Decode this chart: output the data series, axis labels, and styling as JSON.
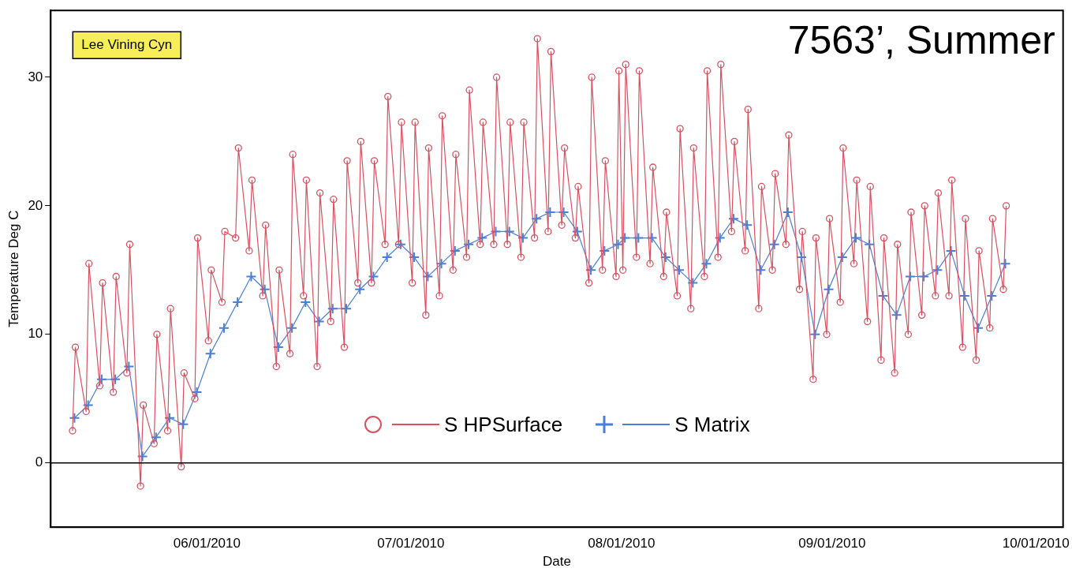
{
  "chart_data": {
    "type": "line",
    "title": "7563’, Summer",
    "xlabel": "Date",
    "ylabel": "Temperature Deg C",
    "annotations": [
      "Lee Vining Cyn"
    ],
    "xlim": [
      "2010-05-09",
      "2010-10-05"
    ],
    "xticks": [
      {
        "value": "2010-06-01",
        "label": "06/01/2010"
      },
      {
        "value": "2010-07-01",
        "label": "07/01/2010"
      },
      {
        "value": "2010-08-01",
        "label": "08/01/2010"
      },
      {
        "value": "2010-09-01",
        "label": "09/01/2010"
      },
      {
        "value": "2010-10-01",
        "label": "10/01/2010"
      }
    ],
    "ylim": [
      -5,
      35.2
    ],
    "yticks": [
      0,
      10,
      20,
      30
    ],
    "ref_lines": [
      {
        "axis": "y",
        "value": 0,
        "color": "#000000"
      }
    ],
    "legend": "bottom",
    "line_style": "solid",
    "series": [
      {
        "name": "S HPSurface",
        "color": "#d9515f",
        "marker": "circle",
        "x": [
          "2010-05-12T05:00",
          "2010-05-12T15:00",
          "2010-05-14T05:00",
          "2010-05-14T15:00",
          "2010-05-16T05:00",
          "2010-05-16T15:00",
          "2010-05-18T05:00",
          "2010-05-18T15:00",
          "2010-05-20T05:00",
          "2010-05-20T15:00",
          "2010-05-22T05:00",
          "2010-05-22T15:00",
          "2010-05-24T05:00",
          "2010-05-24T15:00",
          "2010-05-26T05:00",
          "2010-05-26T15:00",
          "2010-05-28T05:00",
          "2010-05-28T15:00",
          "2010-05-30T05:00",
          "2010-05-30T15:00",
          "2010-06-01T05:00",
          "2010-06-01T15:00",
          "2010-06-03T05:00",
          "2010-06-03T15:00",
          "2010-06-05T05:00",
          "2010-06-05T15:00",
          "2010-06-07T05:00",
          "2010-06-07T15:00",
          "2010-06-09T05:00",
          "2010-06-09T15:00",
          "2010-06-11T05:00",
          "2010-06-11T15:00",
          "2010-06-13T05:00",
          "2010-06-13T15:00",
          "2010-06-15T05:00",
          "2010-06-15T15:00",
          "2010-06-17T05:00",
          "2010-06-17T15:00",
          "2010-06-19T05:00",
          "2010-06-19T15:00",
          "2010-06-21T05:00",
          "2010-06-21T15:00",
          "2010-06-23T05:00",
          "2010-06-23T15:00",
          "2010-06-25T05:00",
          "2010-06-25T15:00",
          "2010-06-27T05:00",
          "2010-06-27T15:00",
          "2010-06-29T05:00",
          "2010-06-29T15:00",
          "2010-07-01T05:00",
          "2010-07-01T15:00",
          "2010-07-03T05:00",
          "2010-07-03T15:00",
          "2010-07-05T05:00",
          "2010-07-05T15:00",
          "2010-07-07T05:00",
          "2010-07-07T15:00",
          "2010-07-09T05:00",
          "2010-07-09T15:00",
          "2010-07-11T05:00",
          "2010-07-11T15:00",
          "2010-07-13T05:00",
          "2010-07-13T15:00",
          "2010-07-15T05:00",
          "2010-07-15T15:00",
          "2010-07-17T05:00",
          "2010-07-17T15:00",
          "2010-07-19T05:00",
          "2010-07-19T15:00",
          "2010-07-21T05:00",
          "2010-07-21T15:00",
          "2010-07-23T05:00",
          "2010-07-23T15:00",
          "2010-07-25T05:00",
          "2010-07-25T15:00",
          "2010-07-27T05:00",
          "2010-07-27T15:00",
          "2010-07-29T05:00",
          "2010-07-29T15:00",
          "2010-07-31T05:00",
          "2010-07-31T15:00",
          "2010-08-01T05:00",
          "2010-08-01T15:00",
          "2010-08-03T05:00",
          "2010-08-03T15:00",
          "2010-08-05T05:00",
          "2010-08-05T15:00",
          "2010-08-07T05:00",
          "2010-08-07T15:00",
          "2010-08-09T05:00",
          "2010-08-09T15:00",
          "2010-08-11T05:00",
          "2010-08-11T15:00",
          "2010-08-13T05:00",
          "2010-08-13T15:00",
          "2010-08-15T05:00",
          "2010-08-15T15:00",
          "2010-08-17T05:00",
          "2010-08-17T15:00",
          "2010-08-19T05:00",
          "2010-08-19T15:00",
          "2010-08-21T05:00",
          "2010-08-21T15:00",
          "2010-08-23T05:00",
          "2010-08-23T15:00",
          "2010-08-25T05:00",
          "2010-08-25T15:00",
          "2010-08-27T05:00",
          "2010-08-27T15:00",
          "2010-08-29T05:00",
          "2010-08-29T15:00",
          "2010-08-31T05:00",
          "2010-08-31T15:00",
          "2010-09-02T05:00",
          "2010-09-02T15:00",
          "2010-09-04T05:00",
          "2010-09-04T15:00",
          "2010-09-06T05:00",
          "2010-09-06T15:00",
          "2010-09-08T05:00",
          "2010-09-08T15:00",
          "2010-09-10T05:00",
          "2010-09-10T15:00",
          "2010-09-12T05:00",
          "2010-09-12T15:00",
          "2010-09-14T05:00",
          "2010-09-14T15:00",
          "2010-09-16T05:00",
          "2010-09-16T15:00",
          "2010-09-18T05:00",
          "2010-09-18T15:00",
          "2010-09-20T05:00",
          "2010-09-20T15:00",
          "2010-09-22T05:00",
          "2010-09-22T15:00",
          "2010-09-24T05:00",
          "2010-09-24T15:00",
          "2010-09-26T05:00",
          "2010-09-26T15:00"
        ],
        "values": [
          2.5,
          9,
          4,
          15.5,
          6,
          14,
          5.5,
          14.5,
          7,
          17,
          -1.8,
          4.5,
          1.5,
          10,
          2.5,
          12,
          -0.3,
          7,
          5,
          17.5,
          9.5,
          15,
          12.5,
          18,
          17.5,
          24.5,
          16.5,
          22,
          13,
          18.5,
          7.5,
          15,
          8.5,
          24,
          13,
          22,
          7.5,
          21,
          11,
          20.5,
          9,
          23.5,
          14,
          25,
          14,
          23.5,
          17,
          28.5,
          17,
          26.5,
          14,
          26.5,
          11.5,
          24.5,
          13,
          27,
          15,
          24,
          16,
          29,
          17,
          26.5,
          17,
          30,
          17,
          26.5,
          16,
          26.5,
          17.5,
          33,
          18,
          32,
          18.5,
          24.5,
          17.5,
          21.5,
          14,
          30,
          15,
          23.5,
          14.5,
          30.5,
          15,
          31,
          16,
          30.5,
          15.5,
          23,
          14.5,
          19.5,
          13,
          26,
          12,
          24.5,
          14.5,
          30.5,
          16,
          31,
          18,
          25,
          16.5,
          27.5,
          12,
          21.5,
          15,
          22.5,
          17,
          25.5,
          13.5,
          18,
          6.5,
          17.5,
          10,
          19,
          12.5,
          24.5,
          15.5,
          22,
          11,
          21.5,
          8,
          17.5,
          7,
          17,
          10,
          19.5,
          11.5,
          20,
          13,
          21,
          13,
          22,
          9,
          19,
          8,
          16.5,
          10.5,
          19,
          13.5,
          20
        ]
      },
      {
        "name": "S Matrix",
        "color": "#4a7fd9",
        "marker": "cross",
        "x": [
          "2010-05-12T12:00",
          "2010-05-14T12:00",
          "2010-05-16T12:00",
          "2010-05-18T12:00",
          "2010-05-20T12:00",
          "2010-05-22T12:00",
          "2010-05-24T12:00",
          "2010-05-26T12:00",
          "2010-05-28T12:00",
          "2010-05-30T12:00",
          "2010-06-01T12:00",
          "2010-06-03T12:00",
          "2010-06-05T12:00",
          "2010-06-07T12:00",
          "2010-06-09T12:00",
          "2010-06-11T12:00",
          "2010-06-13T12:00",
          "2010-06-15T12:00",
          "2010-06-17T12:00",
          "2010-06-19T12:00",
          "2010-06-21T12:00",
          "2010-06-23T12:00",
          "2010-06-25T12:00",
          "2010-06-27T12:00",
          "2010-06-29T12:00",
          "2010-07-01T12:00",
          "2010-07-03T12:00",
          "2010-07-05T12:00",
          "2010-07-07T12:00",
          "2010-07-09T12:00",
          "2010-07-11T12:00",
          "2010-07-13T12:00",
          "2010-07-15T12:00",
          "2010-07-17T12:00",
          "2010-07-19T12:00",
          "2010-07-21T12:00",
          "2010-07-23T12:00",
          "2010-07-25T12:00",
          "2010-07-27T12:00",
          "2010-07-29T12:00",
          "2010-07-31T12:00",
          "2010-08-01T12:00",
          "2010-08-03T12:00",
          "2010-08-05T12:00",
          "2010-08-07T12:00",
          "2010-08-09T12:00",
          "2010-08-11T12:00",
          "2010-08-13T12:00",
          "2010-08-15T12:00",
          "2010-08-17T12:00",
          "2010-08-19T12:00",
          "2010-08-21T12:00",
          "2010-08-23T12:00",
          "2010-08-25T12:00",
          "2010-08-27T12:00",
          "2010-08-29T12:00",
          "2010-08-31T12:00",
          "2010-09-02T12:00",
          "2010-09-04T12:00",
          "2010-09-06T12:00",
          "2010-09-08T12:00",
          "2010-09-10T12:00",
          "2010-09-12T12:00",
          "2010-09-14T12:00",
          "2010-09-16T12:00",
          "2010-09-18T12:00",
          "2010-09-20T12:00",
          "2010-09-22T12:00",
          "2010-09-24T12:00",
          "2010-09-26T12:00"
        ],
        "values": [
          3.5,
          4.5,
          6.5,
          6.5,
          7.5,
          0.5,
          2,
          3.5,
          3,
          5.5,
          8.5,
          10.5,
          12.5,
          14.5,
          13.5,
          9,
          10.5,
          12.5,
          11,
          12,
          12,
          13.5,
          14.5,
          16,
          17,
          16,
          14.5,
          15.5,
          16.5,
          17,
          17.5,
          18,
          18,
          17.5,
          19,
          19.5,
          19.5,
          18,
          15,
          16.5,
          17,
          17.5,
          17.5,
          17.5,
          16,
          15,
          14,
          15.5,
          17.5,
          19,
          18.5,
          15,
          17,
          19.5,
          16,
          10,
          13.5,
          16,
          17.5,
          17,
          13,
          11.5,
          14.5,
          14.5,
          15,
          16.5,
          13,
          10.5,
          13,
          15.5
        ]
      }
    ]
  }
}
